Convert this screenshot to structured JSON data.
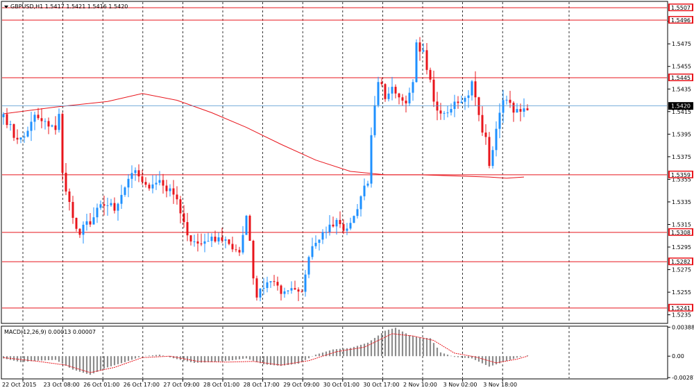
{
  "header": {
    "symbol_title": "GBPUSD,H1  1.5417 1.5421 1.5416 1.5420",
    "indicator_title": "MACD(12,26,9) 0.00013 0.00007"
  },
  "colors": {
    "bull": "#1e90ff",
    "bear": "#e8141b",
    "level_line": "#e8141b",
    "ma_line": "#e8141b",
    "current_price_line": "#4f94cd",
    "grid": "#000000",
    "macd_hist": "#8c8c8c",
    "macd_signal": "#e8141b"
  },
  "chart_data": [
    {
      "type": "candlestick",
      "title": "GBPUSD,H1",
      "price_axis": {
        "range": [
          1.5228,
          1.5512
        ],
        "tick_labels": [
          "1.5495",
          "1.5475",
          "1.5455",
          "1.5435",
          "1.5415",
          "1.5395",
          "1.5375",
          "1.5355",
          "1.5335",
          "1.5315",
          "1.5295",
          "1.5275",
          "1.5255",
          "1.5235"
        ]
      },
      "time_axis": {
        "tick_labels": [
          "22 Oct 2015",
          "23 Oct 08:00",
          "26 Oct 01:00",
          "26 Oct 17:00",
          "27 Oct 09:00",
          "28 Oct 01:00",
          "28 Oct 17:00",
          "29 Oct 09:00",
          "30 Oct 01:00",
          "30 Oct 17:00",
          "2 Nov 10:00",
          "3 Nov 02:00",
          "3 Nov 18:00"
        ]
      },
      "grid": "vertical dotted",
      "current_price": 1.542,
      "horizontal_levels": [
        1.5507,
        1.5496,
        1.5445,
        1.5359,
        1.5308,
        1.5282,
        1.5241
      ],
      "ma_line": [
        {
          "bar": 0,
          "price": 1.5413
        },
        {
          "bar": 15,
          "price": 1.5419
        },
        {
          "bar": 30,
          "price": 1.5424
        },
        {
          "bar": 40,
          "price": 1.5431
        },
        {
          "bar": 50,
          "price": 1.5425
        },
        {
          "bar": 60,
          "price": 1.5414
        },
        {
          "bar": 70,
          "price": 1.5401
        },
        {
          "bar": 80,
          "price": 1.5386
        },
        {
          "bar": 90,
          "price": 1.5372
        },
        {
          "bar": 100,
          "price": 1.5362
        },
        {
          "bar": 110,
          "price": 1.5359
        },
        {
          "bar": 120,
          "price": 1.5359
        },
        {
          "bar": 130,
          "price": 1.5358
        },
        {
          "bar": 140,
          "price": 1.5357
        },
        {
          "bar": 145,
          "price": 1.5356
        },
        {
          "bar": 150,
          "price": 1.5357
        }
      ],
      "anchors": [
        {
          "bar": 0,
          "price": 1.541
        },
        {
          "bar": 3,
          "price": 1.5395
        },
        {
          "bar": 6,
          "price": 1.5392
        },
        {
          "bar": 9,
          "price": 1.5412
        },
        {
          "bar": 12,
          "price": 1.5408
        },
        {
          "bar": 15,
          "price": 1.54
        },
        {
          "bar": 16,
          "price": 1.5415
        },
        {
          "bar": 17,
          "price": 1.536
        },
        {
          "bar": 20,
          "price": 1.532
        },
        {
          "bar": 22,
          "price": 1.5308
        },
        {
          "bar": 25,
          "price": 1.5318
        },
        {
          "bar": 28,
          "price": 1.5335
        },
        {
          "bar": 32,
          "price": 1.533
        },
        {
          "bar": 35,
          "price": 1.535
        },
        {
          "bar": 38,
          "price": 1.5362
        },
        {
          "bar": 41,
          "price": 1.535
        },
        {
          "bar": 44,
          "price": 1.5352
        },
        {
          "bar": 47,
          "price": 1.5348
        },
        {
          "bar": 50,
          "price": 1.5335
        },
        {
          "bar": 53,
          "price": 1.5305
        },
        {
          "bar": 56,
          "price": 1.53
        },
        {
          "bar": 59,
          "price": 1.5302
        },
        {
          "bar": 62,
          "price": 1.5303
        },
        {
          "bar": 65,
          "price": 1.5298
        },
        {
          "bar": 68,
          "price": 1.5288
        },
        {
          "bar": 70,
          "price": 1.5325
        },
        {
          "bar": 72,
          "price": 1.527
        },
        {
          "bar": 73,
          "price": 1.5248
        },
        {
          "bar": 75,
          "price": 1.5262
        },
        {
          "bar": 78,
          "price": 1.5262
        },
        {
          "bar": 81,
          "price": 1.5252
        },
        {
          "bar": 84,
          "price": 1.5258
        },
        {
          "bar": 86,
          "price": 1.5252
        },
        {
          "bar": 88,
          "price": 1.529
        },
        {
          "bar": 91,
          "price": 1.5302
        },
        {
          "bar": 94,
          "price": 1.5315
        },
        {
          "bar": 97,
          "price": 1.5318
        },
        {
          "bar": 99,
          "price": 1.5308
        },
        {
          "bar": 101,
          "price": 1.5322
        },
        {
          "bar": 103,
          "price": 1.5338
        },
        {
          "bar": 105,
          "price": 1.5355
        },
        {
          "bar": 106,
          "price": 1.5395
        },
        {
          "bar": 108,
          "price": 1.5445
        },
        {
          "bar": 110,
          "price": 1.5428
        },
        {
          "bar": 112,
          "price": 1.5435
        },
        {
          "bar": 114,
          "price": 1.543
        },
        {
          "bar": 116,
          "price": 1.5425
        },
        {
          "bar": 118,
          "price": 1.544
        },
        {
          "bar": 119,
          "price": 1.5475
        },
        {
          "bar": 121,
          "price": 1.5468
        },
        {
          "bar": 123,
          "price": 1.544
        },
        {
          "bar": 125,
          "price": 1.5412
        },
        {
          "bar": 127,
          "price": 1.541
        },
        {
          "bar": 129,
          "price": 1.542
        },
        {
          "bar": 131,
          "price": 1.542
        },
        {
          "bar": 133,
          "price": 1.5425
        },
        {
          "bar": 135,
          "price": 1.5438
        },
        {
          "bar": 137,
          "price": 1.541
        },
        {
          "bar": 139,
          "price": 1.539
        },
        {
          "bar": 140,
          "price": 1.5364
        },
        {
          "bar": 141,
          "price": 1.538
        },
        {
          "bar": 143,
          "price": 1.5415
        },
        {
          "bar": 145,
          "price": 1.5428
        },
        {
          "bar": 147,
          "price": 1.5418
        },
        {
          "bar": 149,
          "price": 1.5417
        },
        {
          "bar": 151,
          "price": 1.542
        }
      ],
      "bar_count": 152,
      "seed": 20151103
    },
    {
      "type": "bar",
      "title": "MACD(12,26,9) 0.00013 0.00007",
      "value_axis": {
        "range": [
          -0.00295,
          0.00392
        ],
        "tick_labels": [
          "0.00388",
          "0.00",
          "-0.00287"
        ]
      },
      "histogram_anchors": [
        {
          "bar": 0,
          "value": -0.0003
        },
        {
          "bar": 5,
          "value": -0.0008
        },
        {
          "bar": 10,
          "value": -0.0006
        },
        {
          "bar": 15,
          "value": -0.0005
        },
        {
          "bar": 20,
          "value": -0.0018
        },
        {
          "bar": 25,
          "value": -0.0025
        },
        {
          "bar": 30,
          "value": -0.0015
        },
        {
          "bar": 35,
          "value": -0.0008
        },
        {
          "bar": 40,
          "value": 0.0
        },
        {
          "bar": 45,
          "value": 0.0002
        },
        {
          "bar": 50,
          "value": -0.0004
        },
        {
          "bar": 55,
          "value": -0.0009
        },
        {
          "bar": 60,
          "value": -0.0008
        },
        {
          "bar": 65,
          "value": -0.0006
        },
        {
          "bar": 70,
          "value": -0.0003
        },
        {
          "bar": 75,
          "value": -0.0011
        },
        {
          "bar": 80,
          "value": -0.0013
        },
        {
          "bar": 85,
          "value": -0.001
        },
        {
          "bar": 90,
          "value": 0.0002
        },
        {
          "bar": 95,
          "value": 0.0009
        },
        {
          "bar": 100,
          "value": 0.0011
        },
        {
          "bar": 105,
          "value": 0.0018
        },
        {
          "bar": 110,
          "value": 0.0034
        },
        {
          "bar": 113,
          "value": 0.0038
        },
        {
          "bar": 117,
          "value": 0.0028
        },
        {
          "bar": 120,
          "value": 0.0025
        },
        {
          "bar": 123,
          "value": 0.0024
        },
        {
          "bar": 126,
          "value": 0.0005
        },
        {
          "bar": 130,
          "value": -0.0001
        },
        {
          "bar": 135,
          "value": -0.0003
        },
        {
          "bar": 140,
          "value": -0.0014
        },
        {
          "bar": 144,
          "value": -0.0008
        },
        {
          "bar": 148,
          "value": -0.0002
        },
        {
          "bar": 151,
          "value": 0.0001
        }
      ],
      "signal_anchors": [
        {
          "bar": 0,
          "value": -0.0002
        },
        {
          "bar": 10,
          "value": -0.0007
        },
        {
          "bar": 18,
          "value": -0.0012
        },
        {
          "bar": 25,
          "value": -0.0022
        },
        {
          "bar": 32,
          "value": -0.0015
        },
        {
          "bar": 40,
          "value": -0.0002
        },
        {
          "bar": 48,
          "value": 0.0
        },
        {
          "bar": 56,
          "value": -0.0007
        },
        {
          "bar": 64,
          "value": -0.0008
        },
        {
          "bar": 72,
          "value": -0.0007
        },
        {
          "bar": 80,
          "value": -0.0012
        },
        {
          "bar": 88,
          "value": -0.0006
        },
        {
          "bar": 96,
          "value": 0.0006
        },
        {
          "bar": 104,
          "value": 0.0012
        },
        {
          "bar": 112,
          "value": 0.003
        },
        {
          "bar": 118,
          "value": 0.0027
        },
        {
          "bar": 124,
          "value": 0.0021
        },
        {
          "bar": 130,
          "value": 0.0004
        },
        {
          "bar": 136,
          "value": -0.0001
        },
        {
          "bar": 142,
          "value": -0.0009
        },
        {
          "bar": 148,
          "value": -0.0004
        },
        {
          "bar": 151,
          "value": 0.0
        }
      ]
    }
  ]
}
